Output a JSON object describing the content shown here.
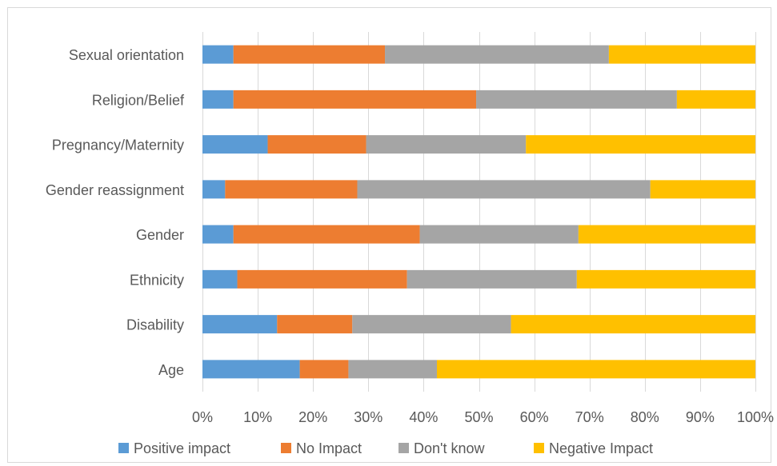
{
  "chart_data": {
    "type": "bar",
    "orientation": "horizontal",
    "stacked": "percent",
    "categories": [
      "Age",
      "Disability",
      "Ethnicity",
      "Gender",
      "Gender reassignment",
      "Pregnancy/Maternity",
      "Religion/Belief",
      "Sexual orientation"
    ],
    "series": [
      {
        "name": "Positive impact",
        "color": "#5b9bd5",
        "values": [
          17.6,
          13.5,
          6.3,
          5.6,
          4.1,
          11.8,
          5.6,
          5.6
        ]
      },
      {
        "name": "No Impact",
        "color": "#ed7d31",
        "values": [
          8.8,
          13.6,
          30.7,
          33.7,
          23.9,
          17.8,
          43.9,
          27.4
        ]
      },
      {
        "name": "Don't know",
        "color": "#a5a5a5",
        "values": [
          16.0,
          28.7,
          30.7,
          28.7,
          53.0,
          28.9,
          36.3,
          40.5
        ]
      },
      {
        "name": "Negative Impact",
        "color": "#ffc000",
        "values": [
          57.6,
          44.2,
          32.3,
          32.0,
          19.0,
          41.5,
          14.2,
          26.5
        ]
      }
    ],
    "x_ticks": [
      "0%",
      "10%",
      "20%",
      "30%",
      "40%",
      "50%",
      "60%",
      "70%",
      "80%",
      "90%",
      "100%"
    ],
    "xlim": [
      0,
      100
    ],
    "legend_position": "bottom",
    "grid": true
  }
}
